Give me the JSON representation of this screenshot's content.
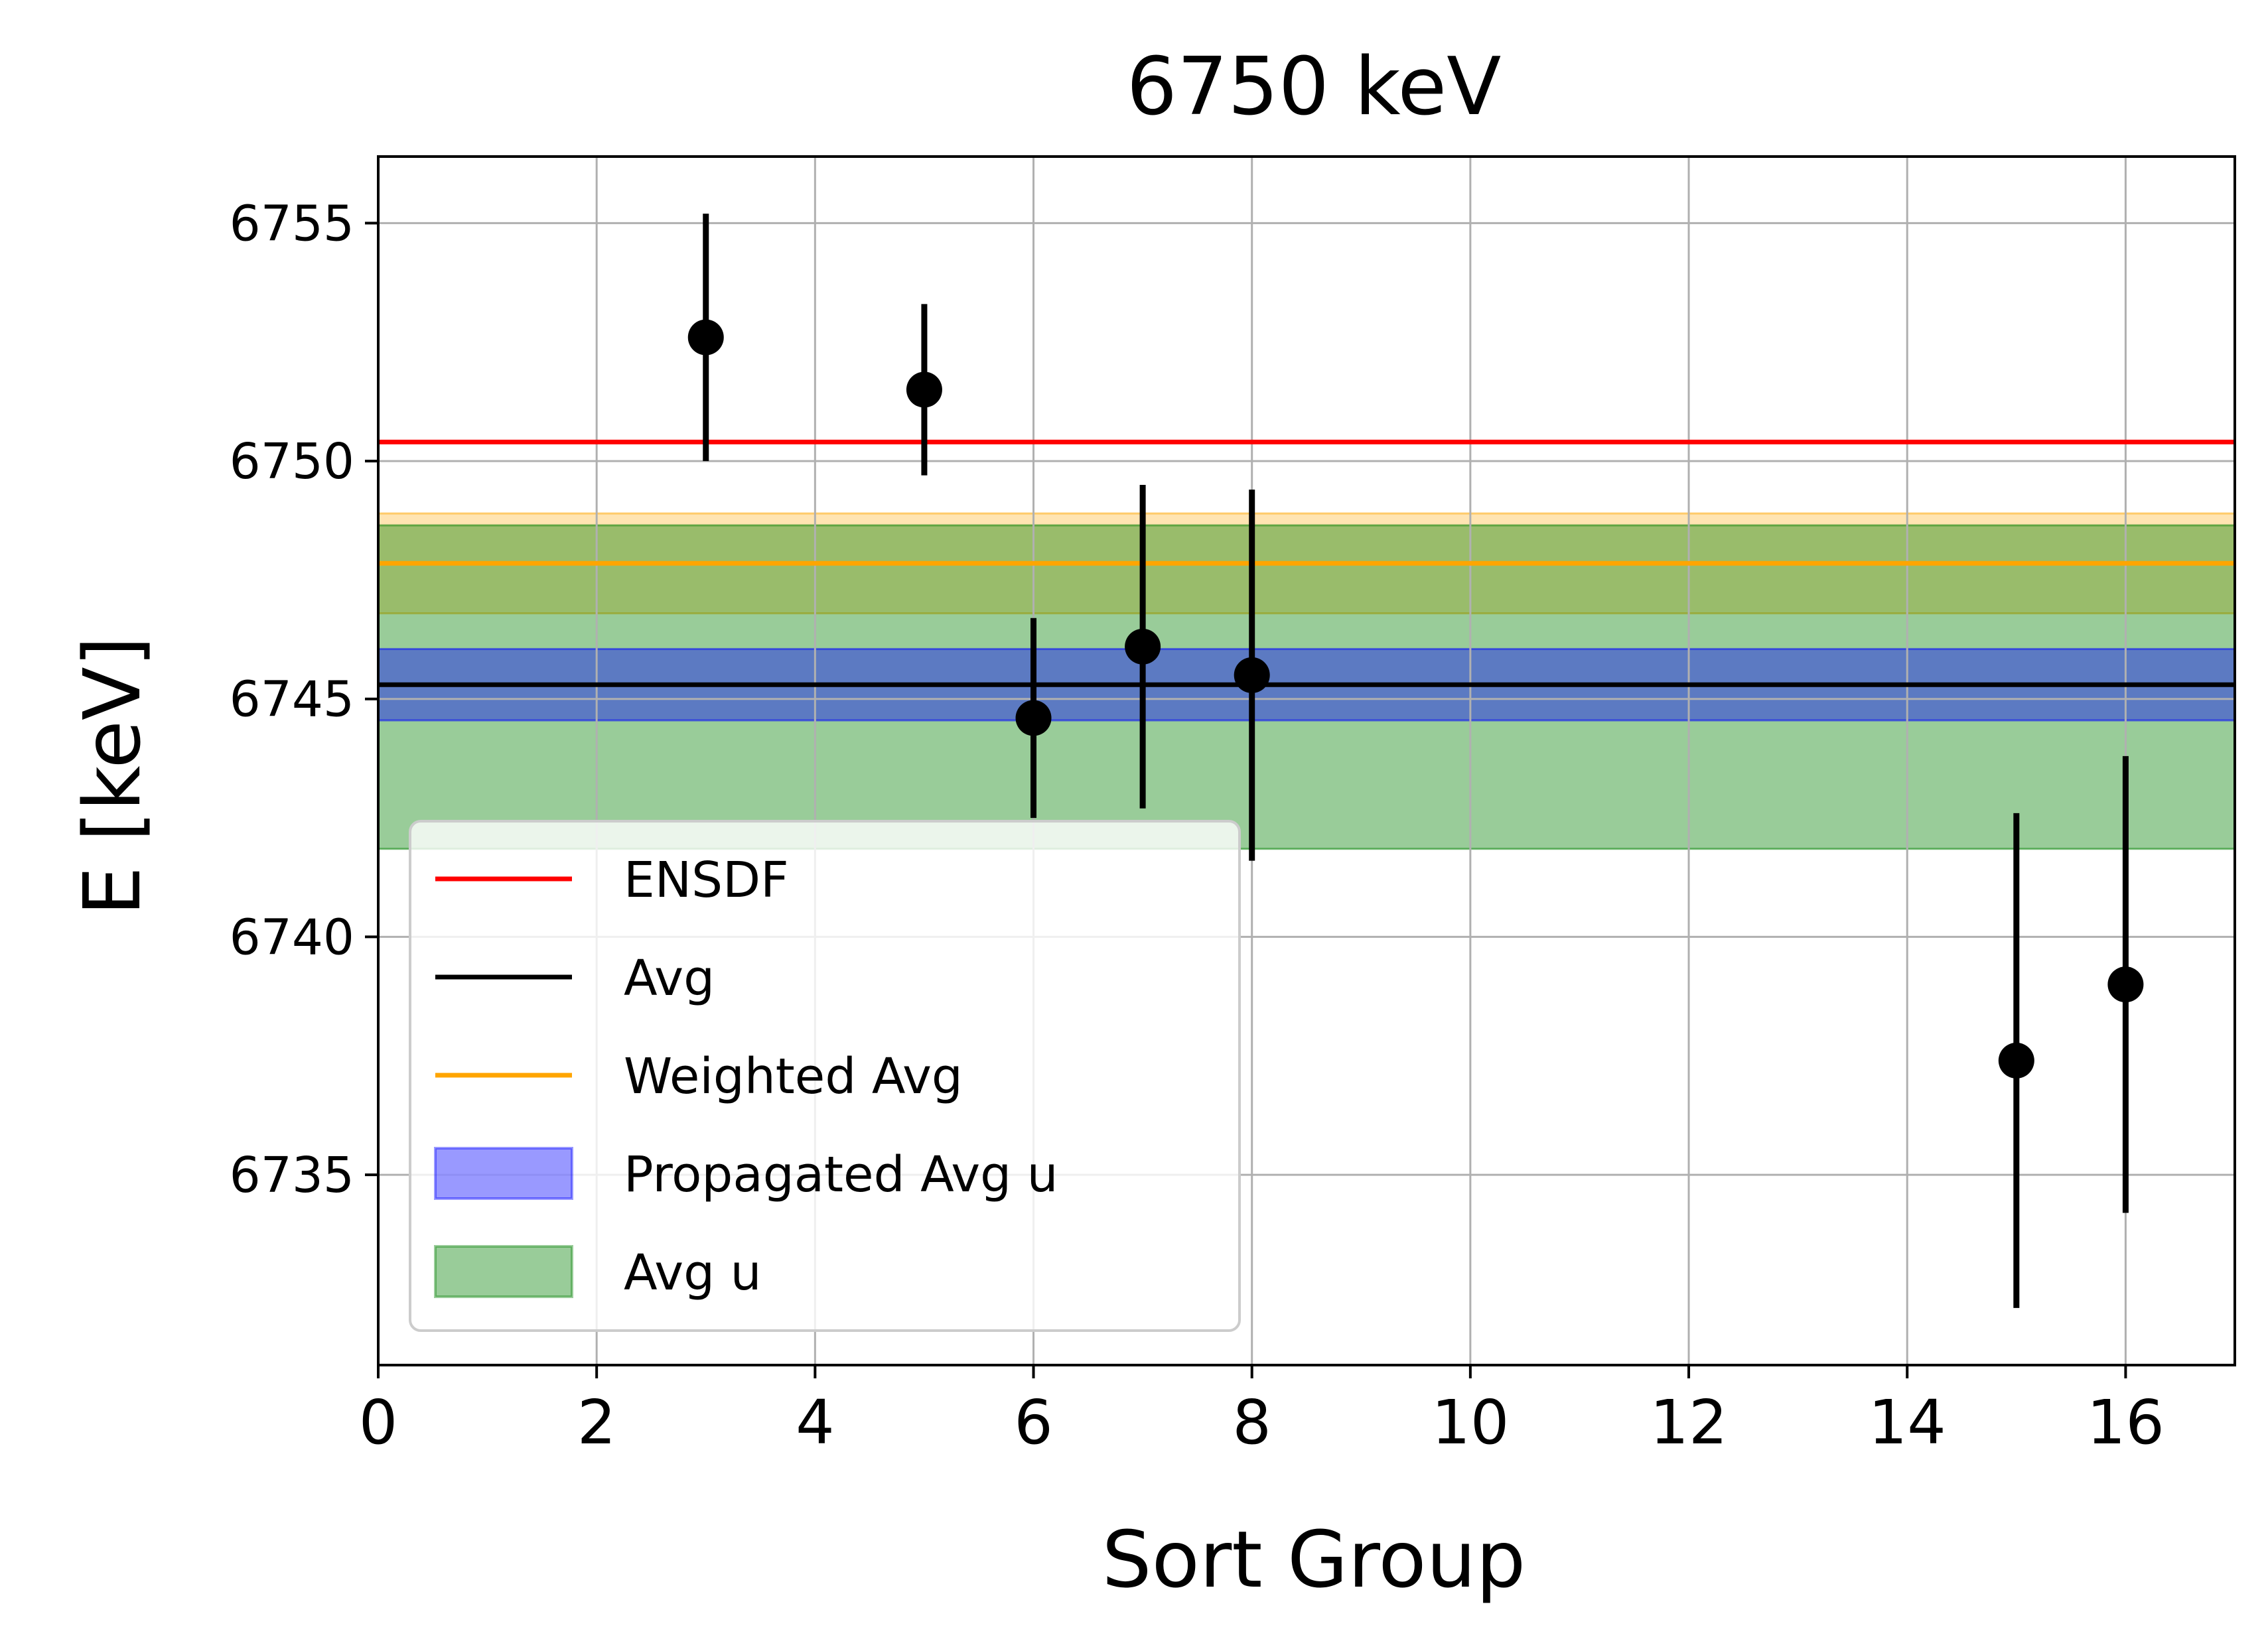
{
  "chart_data": {
    "type": "scatter",
    "title": "6750 keV",
    "xlabel": "Sort Group",
    "ylabel": "E [keV]",
    "xlim": [
      0,
      17
    ],
    "ylim": [
      6731.0,
      6756.4
    ],
    "xticks": [
      0,
      2,
      4,
      6,
      8,
      10,
      12,
      14,
      16
    ],
    "yticks": [
      6735,
      6740,
      6745,
      6750,
      6755
    ],
    "grid": true,
    "legend_position": "lower-left",
    "points": {
      "x": [
        3,
        5,
        6,
        7,
        8,
        15,
        16
      ],
      "y": [
        6752.6,
        6751.5,
        6744.6,
        6746.1,
        6745.5,
        6737.4,
        6739.0
      ],
      "yerr": [
        2.6,
        1.8,
        2.1,
        3.4,
        3.9,
        5.2,
        4.8
      ],
      "color": "#000000"
    },
    "lines": [
      {
        "name": "ENSDF",
        "y": 6750.4,
        "color": "#ff0000"
      },
      {
        "name": "Avg",
        "y": 6745.3,
        "color": "#000000"
      },
      {
        "name": "Weighted Avg",
        "y": 6747.85,
        "color": "#ffa500"
      }
    ],
    "bands": [
      {
        "name": "Propagated Avg u",
        "y_low": 6744.55,
        "y_high": 6746.05,
        "color": "#0000ff",
        "opacity": 0.4
      },
      {
        "name": "Avg u",
        "y_low": 6741.85,
        "y_high": 6748.65,
        "color": "#008000",
        "opacity": 0.4
      },
      {
        "name": "",
        "y_low": 6746.8,
        "y_high": 6748.9,
        "color": "#ffa500",
        "opacity": 0.3
      }
    ],
    "legend": [
      "ENSDF",
      "Avg",
      "Weighted Avg",
      "Propagated Avg u",
      "Avg u"
    ]
  }
}
